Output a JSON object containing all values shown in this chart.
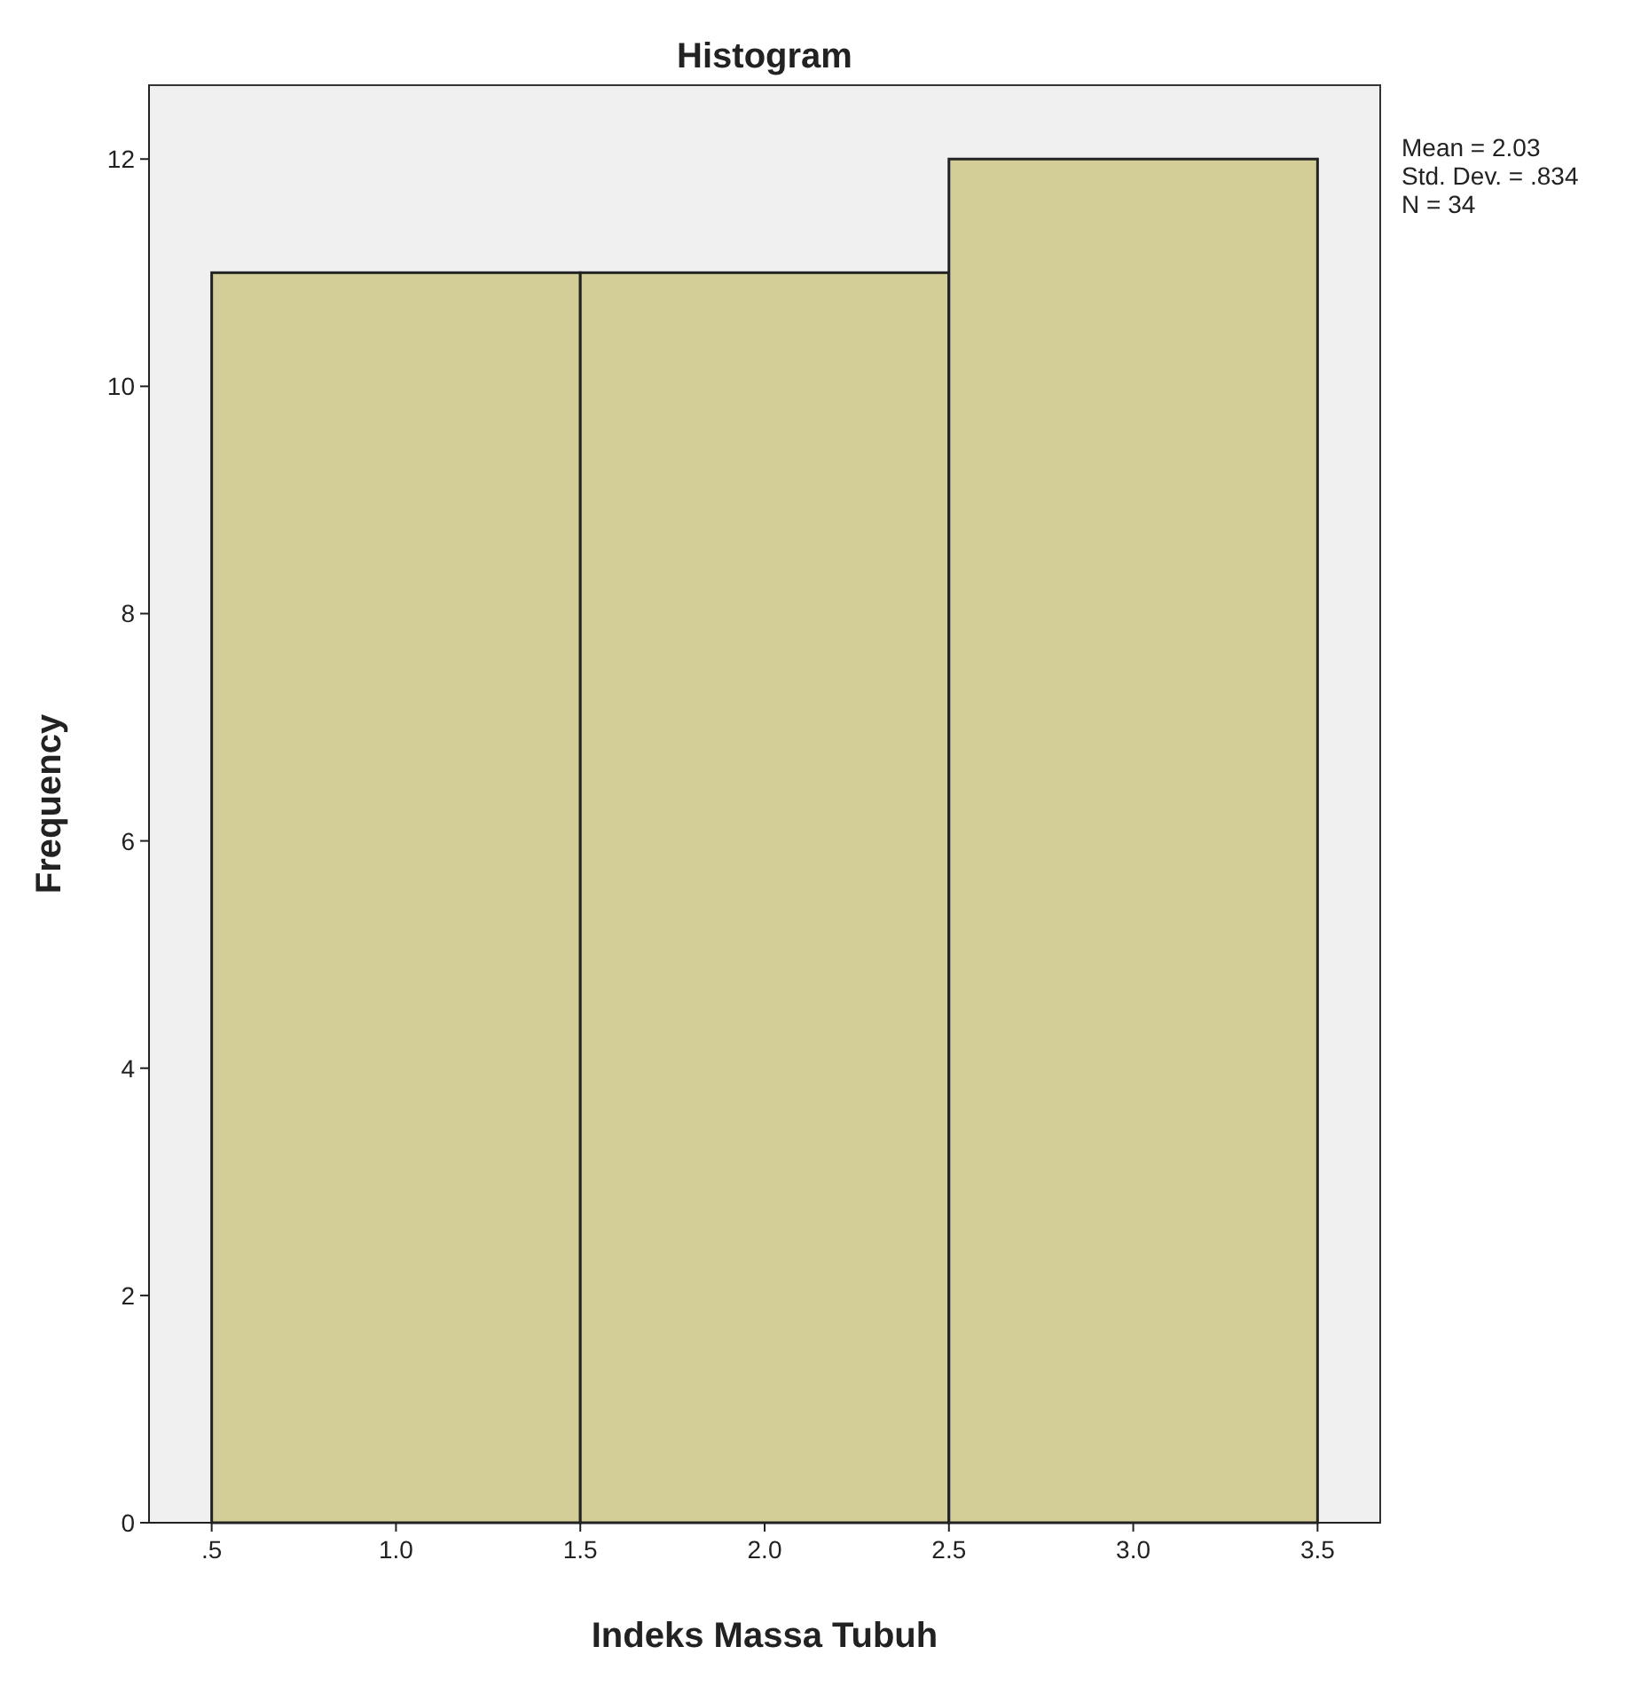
{
  "chart_data": {
    "type": "histogram",
    "title": "Histogram",
    "xlabel": "Indeks Massa Tubuh",
    "ylabel": "Frequency",
    "bins": [
      0.5,
      1.5,
      2.5,
      3.5
    ],
    "values": [
      11,
      11,
      12
    ],
    "color": "#d3ce97",
    "xlim": [
      0.33,
      3.67
    ],
    "ylim": [
      0,
      12.65
    ],
    "xticks": [
      {
        "value": 0.5,
        "label": ".5"
      },
      {
        "value": 1.0,
        "label": "1.0"
      },
      {
        "value": 1.5,
        "label": "1.5"
      },
      {
        "value": 2.0,
        "label": "2.0"
      },
      {
        "value": 2.5,
        "label": "2.5"
      },
      {
        "value": 3.0,
        "label": "3.0"
      },
      {
        "value": 3.5,
        "label": "3.5"
      }
    ],
    "yticks": [
      0,
      2,
      4,
      6,
      8,
      10,
      12
    ],
    "annotations": [
      "Mean = 2.03",
      "Std. Dev. = .834",
      "N = 34"
    ]
  }
}
